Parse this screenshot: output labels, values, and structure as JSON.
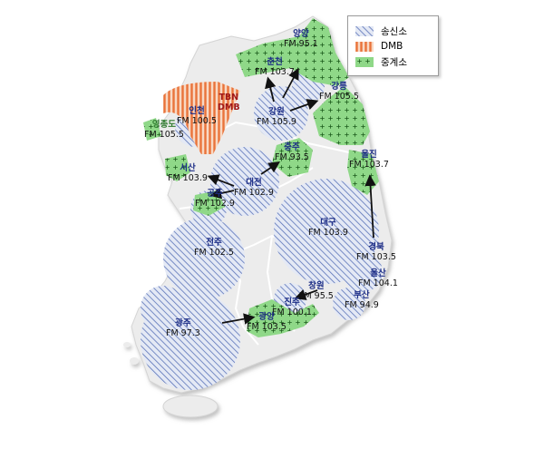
{
  "legend": {
    "items": [
      {
        "key": "transmit",
        "label": "송신소"
      },
      {
        "key": "dmb",
        "label": "DMB"
      },
      {
        "key": "relay",
        "label": "중계소"
      }
    ]
  },
  "stations": [
    {
      "id": "yangyang",
      "name": "양양",
      "freq": "FM 95.1"
    },
    {
      "id": "chuncheon",
      "name": "춘천",
      "freq": "FM 103.7"
    },
    {
      "id": "gangneung",
      "name": "강릉",
      "freq": "FM 105.5"
    },
    {
      "id": "gangwon",
      "name": "강원",
      "freq": "FM 105.9"
    },
    {
      "id": "tbn",
      "name": "TBN",
      "freq": "DMB"
    },
    {
      "id": "incheon",
      "name": "인천",
      "freq": "FM 100.5"
    },
    {
      "id": "yeongjongdo",
      "name": "영종도",
      "freq": "FM 105.5"
    },
    {
      "id": "chungju",
      "name": "충주",
      "freq": "FM 93.5"
    },
    {
      "id": "uljin",
      "name": "울진",
      "freq": "FM 103.7"
    },
    {
      "id": "seosan",
      "name": "서산",
      "freq": "FM 103.9"
    },
    {
      "id": "daejeon",
      "name": "대전",
      "freq": "FM 102.9"
    },
    {
      "id": "gongju",
      "name": "공주",
      "freq": "FM 102.9"
    },
    {
      "id": "daegu",
      "name": "대구",
      "freq": "FM 103.9"
    },
    {
      "id": "jeonju",
      "name": "전주",
      "freq": "FM 102.5"
    },
    {
      "id": "gyeongbuk",
      "name": "경북",
      "freq": "FM 103.5"
    },
    {
      "id": "ulsan",
      "name": "울산",
      "freq": "FM 104.1"
    },
    {
      "id": "busan",
      "name": "부산",
      "freq": "FM 94.9"
    },
    {
      "id": "changwon",
      "name": "창원",
      "freq": "FM 95.5"
    },
    {
      "id": "jinju",
      "name": "진주",
      "freq": "FM 100.1"
    },
    {
      "id": "gwangju",
      "name": "광주",
      "freq": "FM 97.3"
    },
    {
      "id": "gwangyang",
      "name": "광양",
      "freq": "FM 103.5"
    }
  ],
  "colors": {
    "transmit": "#5b73b8",
    "dmb": "#e9733a",
    "relay": "#8fd888",
    "land": "#ececec",
    "border": "#ffffff",
    "arrow": "#111111"
  }
}
